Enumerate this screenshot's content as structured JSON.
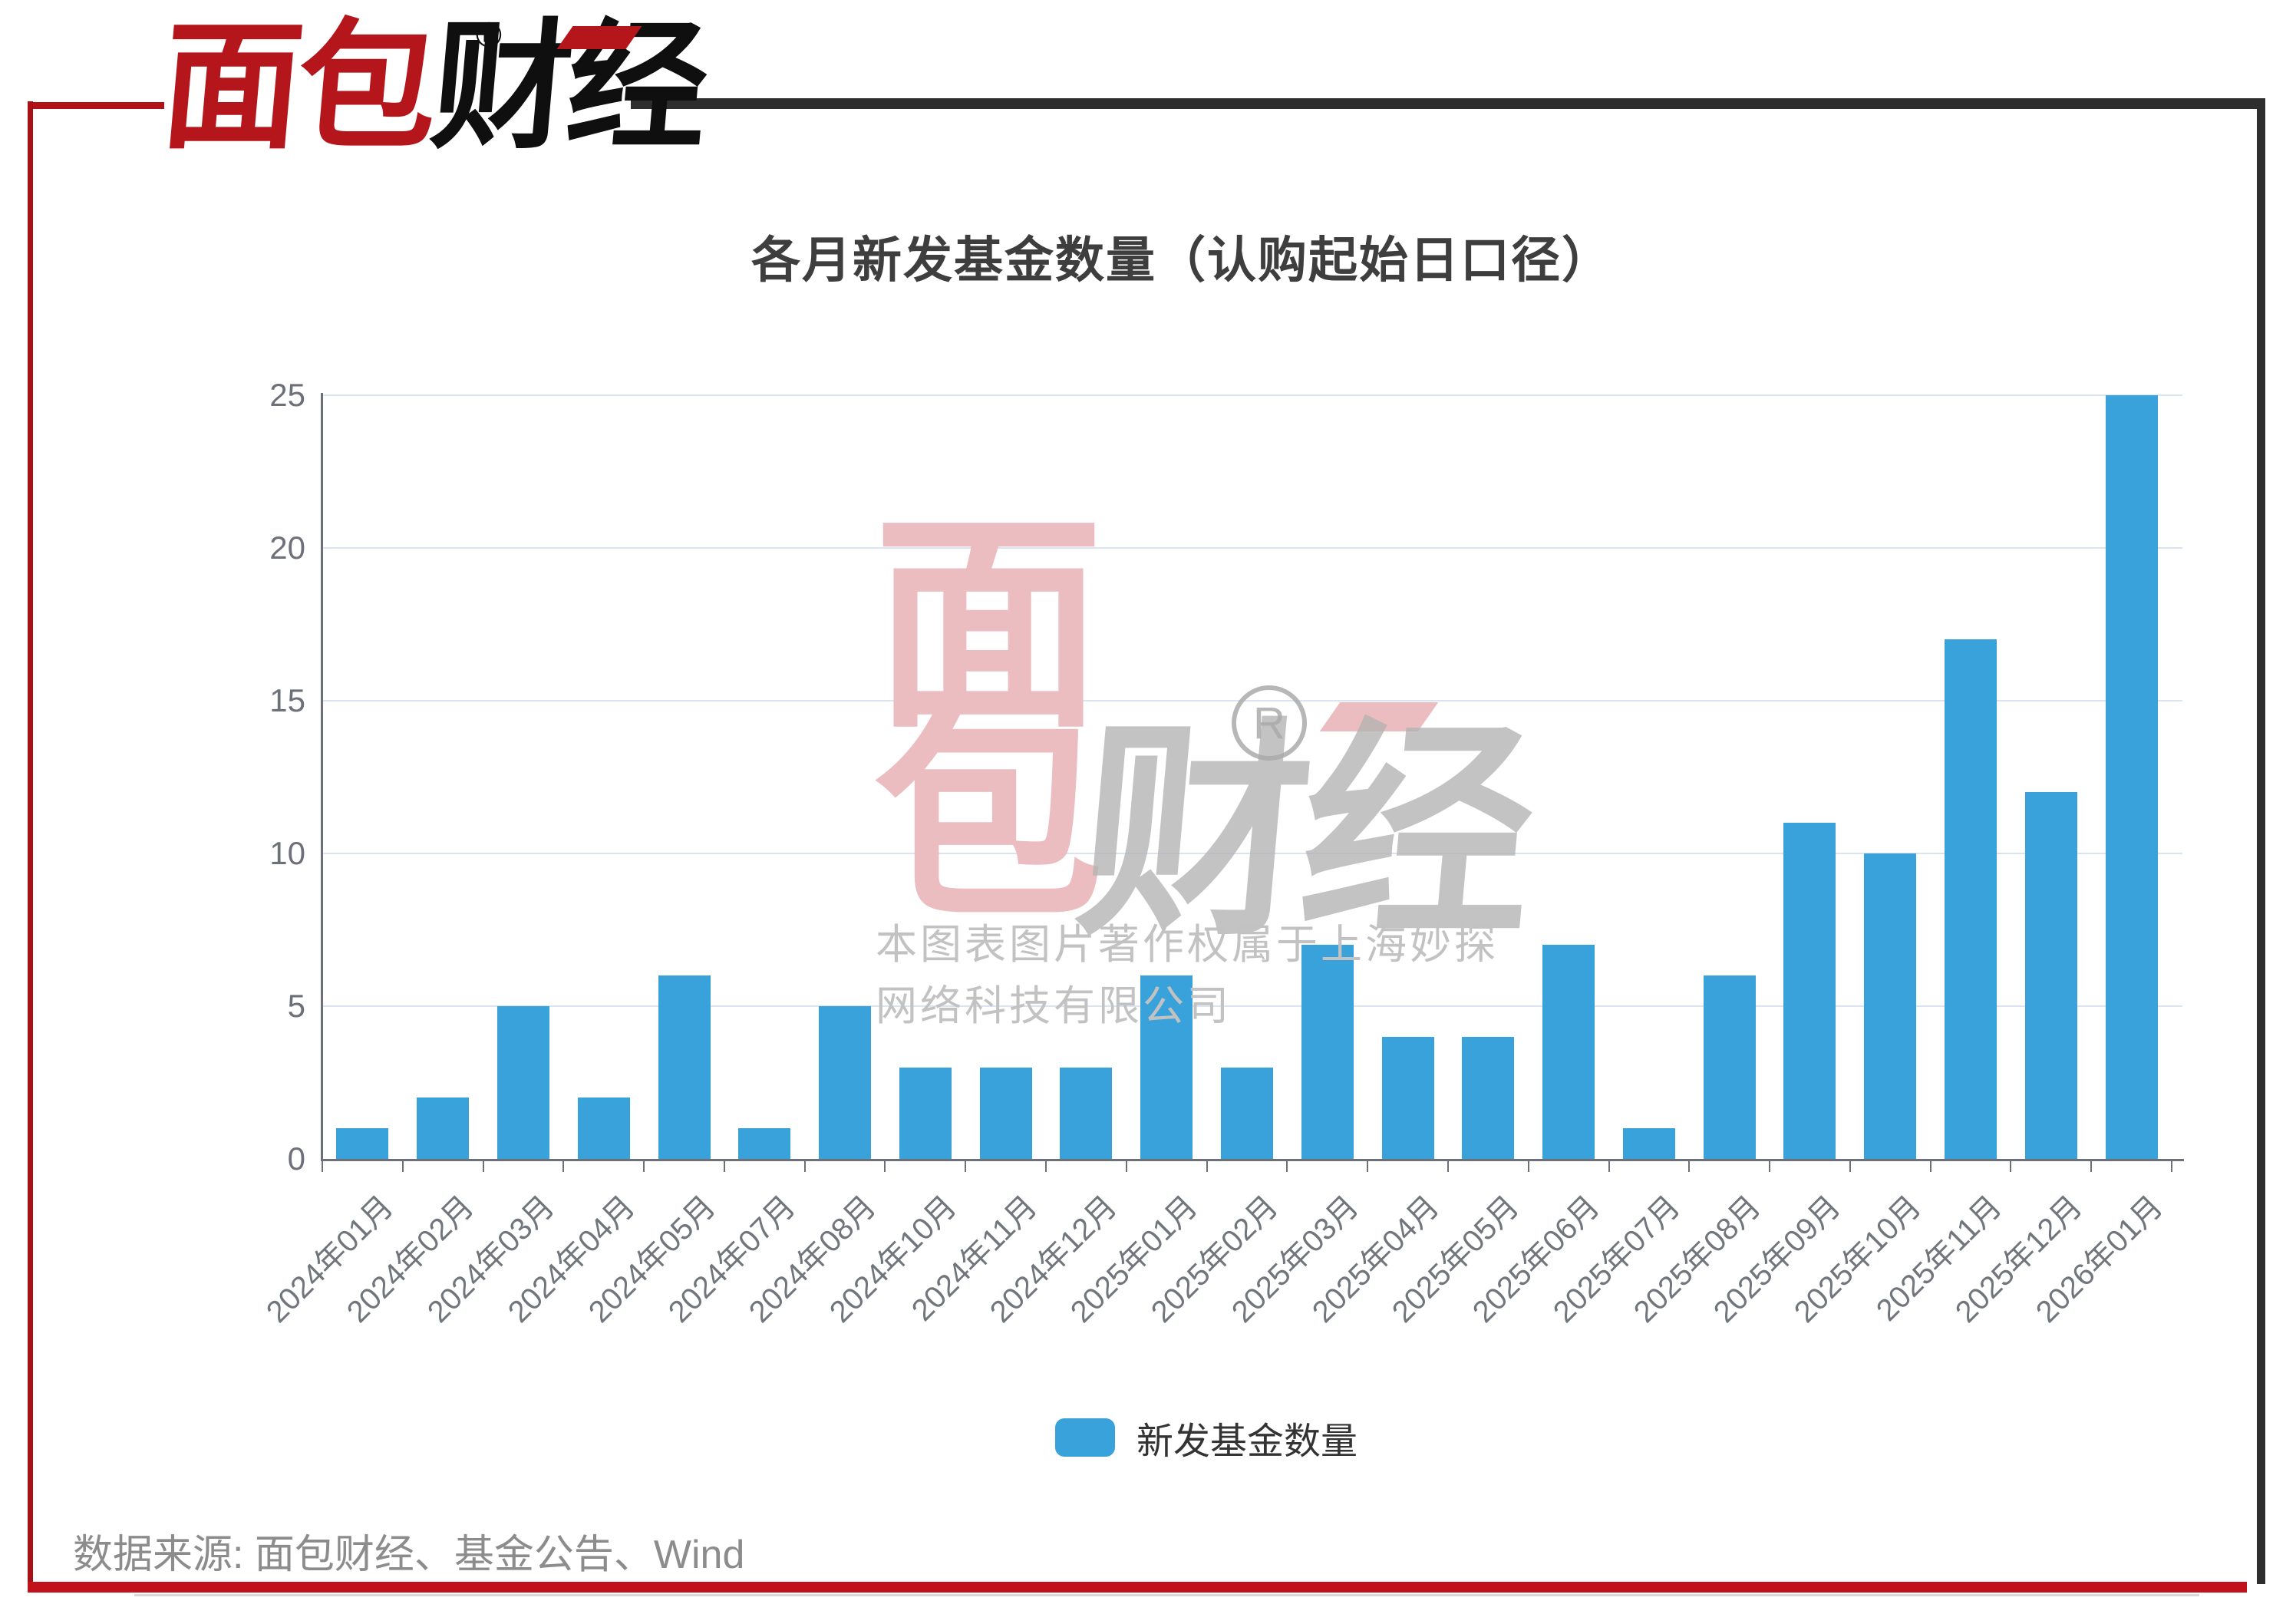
{
  "logo": {
    "brand_red": "面包",
    "brand_black": "财经",
    "registered_mark": "®"
  },
  "header": {
    "title": "各月新发基金数量（认购起始日口径）"
  },
  "chart_data": {
    "type": "bar",
    "title": "各月新发基金数量（认购起始日口径）",
    "series_name": "新发基金数量",
    "categories": [
      "2024年01月",
      "2024年02月",
      "2024年03月",
      "2024年04月",
      "2024年05月",
      "2024年07月",
      "2024年08月",
      "2024年10月",
      "2024年11月",
      "2024年12月",
      "2025年01月",
      "2025年02月",
      "2025年03月",
      "2025年04月",
      "2025年05月",
      "2025年06月",
      "2025年07月",
      "2025年08月",
      "2025年09月",
      "2025年10月",
      "2025年11月",
      "2025年12月",
      "2026年01月"
    ],
    "values": [
      1,
      2,
      5,
      2,
      6,
      1,
      5,
      3,
      3,
      3,
      6,
      3,
      7,
      4,
      4,
      7,
      1,
      6,
      11,
      10,
      17,
      12,
      25
    ],
    "xlabel": "",
    "ylabel": "",
    "ylim": [
      0,
      25
    ],
    "yticks": [
      0,
      5,
      10,
      15,
      20,
      25
    ],
    "grid": true,
    "legend_position": "bottom",
    "bar_color": "#39A2DB",
    "grid_color": "#DCE3F0",
    "axis_color": "#6E7079"
  },
  "legend": {
    "label": "新发基金数量",
    "swatch_color": "#39A2DB"
  },
  "watermark": {
    "stack_top_char": "面",
    "stack_bottom_char": "包",
    "brand_suffix": "财经",
    "registered_mark": "R",
    "copyright_line1": "本图表图片著作权属于上海妙探",
    "copyright_line2": "网络科技有限公司"
  },
  "footer": {
    "source_label": "数据来源: 面包财经、基金公告、Wind"
  },
  "colors": {
    "bar_blue": "#39A2DB",
    "frame_red": "#C1121C",
    "frame_dark": "#2E2E2E",
    "logo_red": "#B5161C",
    "watermark_pink": "#ECBDC0",
    "watermark_gray": "#B3B3B3"
  }
}
